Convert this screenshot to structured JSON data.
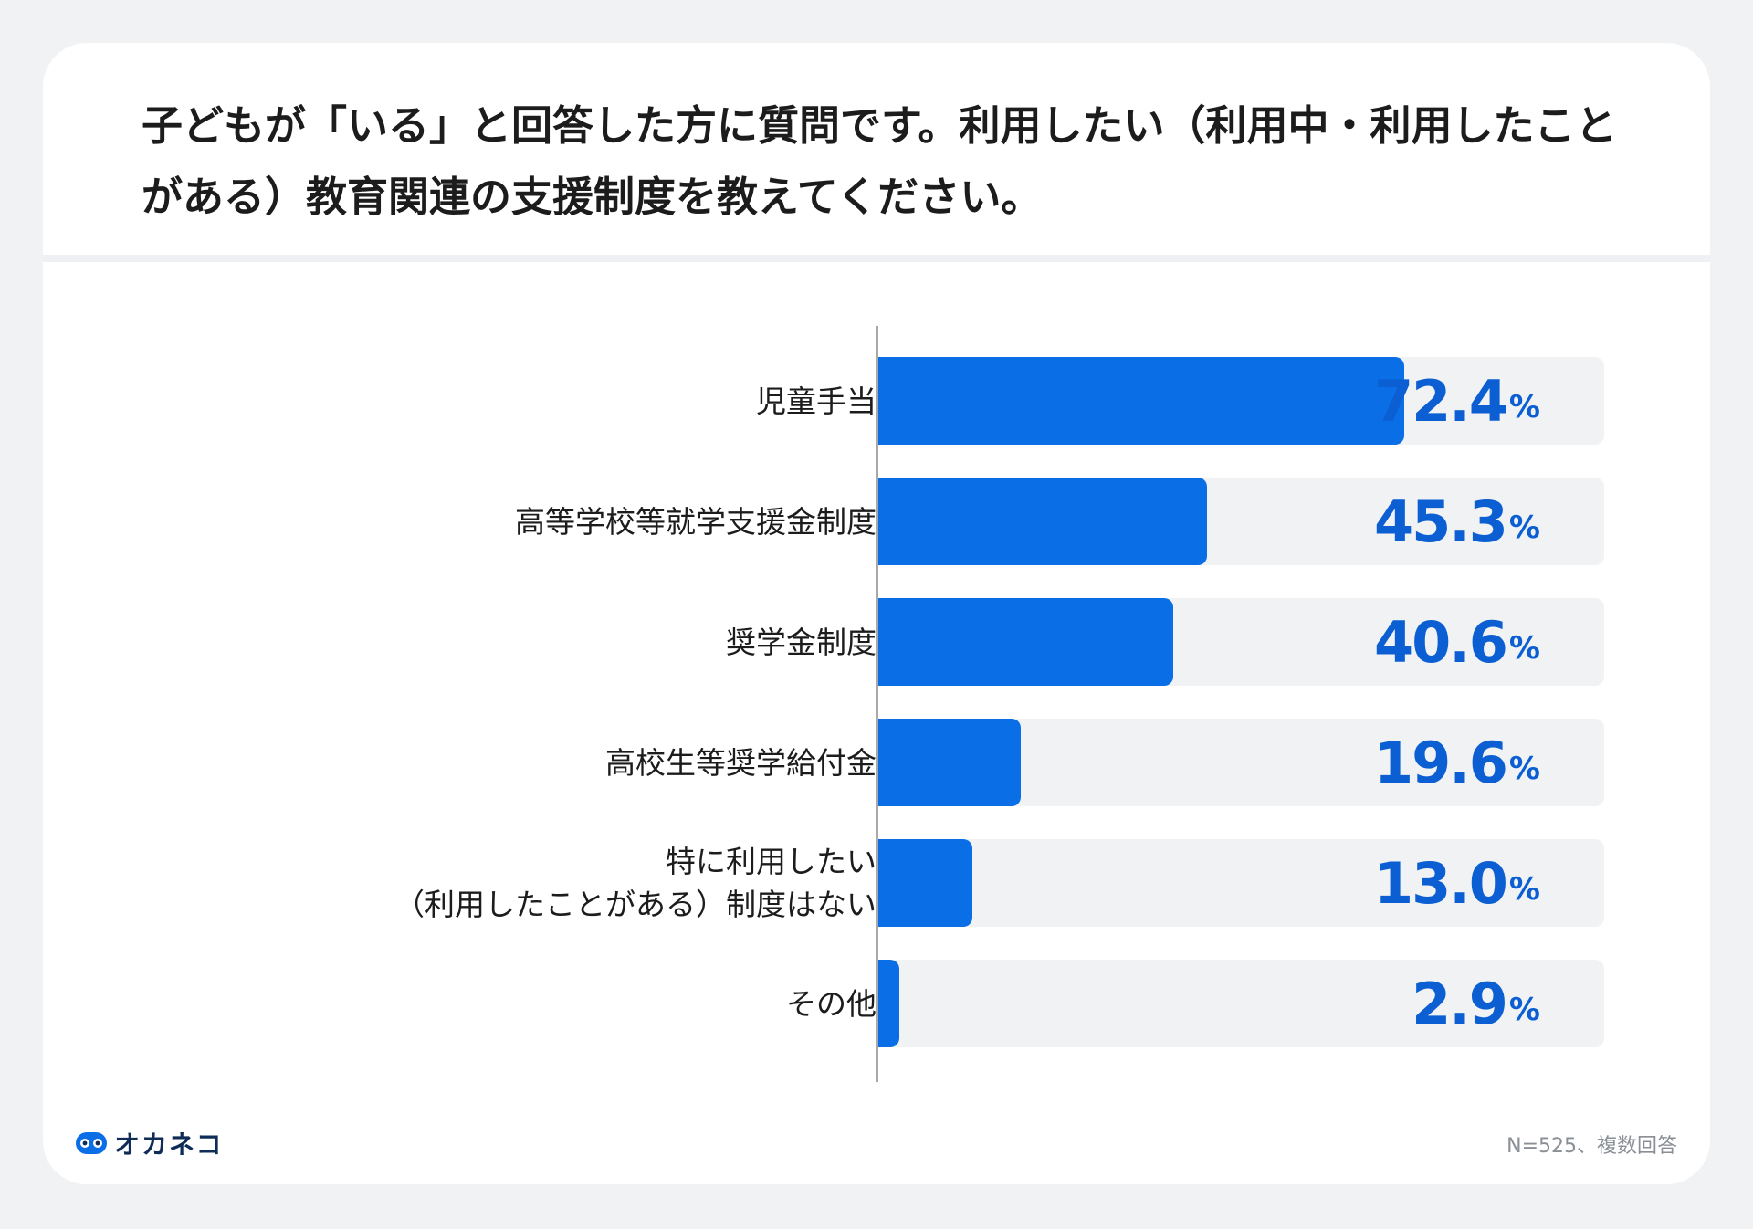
{
  "title": "子どもが「いる」と回答した方に質問です。利用したい（利用中・利用したことがある）教育関連の支援制度を教えてください。",
  "brand": {
    "name": "オカネコ"
  },
  "note": "N=525、複数回答",
  "colors": {
    "bar": "#0a6fe6",
    "value_text": "#0b5fd3",
    "track": "#f1f2f4"
  },
  "chart_data": {
    "type": "bar",
    "orientation": "horizontal",
    "categories": [
      "児童手当",
      "高等学校等就学支援金制度",
      "奨学金制度",
      "高校生等奨学給付金",
      "特に利用したい\n（利用したことがある）制度はない",
      "その他"
    ],
    "values": [
      72.4,
      45.3,
      40.6,
      19.6,
      13.0,
      2.9
    ],
    "value_labels": [
      "72.4",
      "45.3",
      "40.6",
      "19.6",
      "13.0",
      "2.9"
    ],
    "unit": "%",
    "xlim": [
      0,
      100
    ]
  }
}
